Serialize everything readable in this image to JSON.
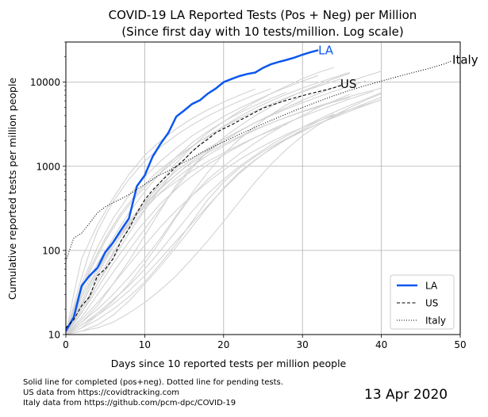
{
  "chart_data": {
    "type": "line",
    "title_line1": "COVID-19 LA Reported Tests (Pos + Neg) per Million",
    "title_line2": "(Since first day with 10 tests/million. Log scale)",
    "xlabel": "Days since 10 reported tests per million people",
    "ylabel": "Cumulative reported tests per million people",
    "xlim": [
      0,
      50
    ],
    "ylim": [
      10,
      30000
    ],
    "yscale": "log",
    "xticks": [
      0,
      10,
      20,
      30,
      40,
      50
    ],
    "xtick_labels": [
      "0",
      "10",
      "20",
      "30",
      "40",
      "50"
    ],
    "yticks": [
      10,
      100,
      1000,
      10000
    ],
    "ytick_labels": [
      "10",
      "100",
      "1000",
      "10000"
    ],
    "grid": true,
    "legend_placement": "lower-right",
    "legend": [
      {
        "label": "LA",
        "style": "solid",
        "color": "#0b57f0"
      },
      {
        "label": "US",
        "style": "dashed",
        "color": "#000000"
      },
      {
        "label": "Italy",
        "style": "dotted",
        "color": "#000000"
      }
    ],
    "annotations": [
      {
        "text": "LA",
        "x": 32,
        "y": 24000,
        "color": "#0b57f0"
      },
      {
        "text": "US",
        "x": 34.8,
        "y": 9500,
        "color": "#000000"
      },
      {
        "text": "Italy",
        "x": 49,
        "y": 18500,
        "color": "#000000"
      }
    ],
    "series": [
      {
        "name": "LA",
        "color": "#0b57f0",
        "style": "solid",
        "x": [
          0,
          1,
          2,
          3,
          4,
          5,
          6,
          7,
          8,
          9,
          10,
          11,
          12,
          13,
          14,
          15,
          16,
          17,
          18,
          19,
          20,
          21,
          22,
          23,
          24,
          25,
          26,
          27,
          28,
          29,
          30,
          31,
          32
        ],
        "y": [
          11,
          16,
          38,
          50,
          62,
          95,
          125,
          175,
          240,
          580,
          780,
          1300,
          1850,
          2500,
          3900,
          4600,
          5500,
          6100,
          7300,
          8400,
          10000,
          10900,
          11800,
          12500,
          13000,
          14800,
          16300,
          17400,
          18400,
          19600,
          21200,
          22700,
          24000
        ]
      },
      {
        "name": "US",
        "color": "#000000",
        "style": "dashed",
        "x": [
          0,
          1,
          2,
          3,
          4,
          5,
          6,
          7,
          8,
          9,
          10,
          11,
          12,
          13,
          14,
          15,
          16,
          17,
          18,
          19,
          20,
          21,
          22,
          23,
          24,
          25,
          26,
          27,
          28,
          29,
          30,
          31,
          32,
          33,
          34,
          35
        ],
        "y": [
          12,
          15,
          22,
          28,
          50,
          60,
          80,
          130,
          180,
          280,
          400,
          520,
          650,
          800,
          1000,
          1200,
          1500,
          1800,
          2100,
          2500,
          2800,
          3100,
          3500,
          3900,
          4400,
          4900,
          5300,
          5700,
          6100,
          6500,
          6900,
          7300,
          7700,
          8100,
          8600,
          9200
        ]
      },
      {
        "name": "Italy",
        "color": "#000000",
        "style": "dotted",
        "x": [
          0,
          1,
          2,
          3,
          4,
          5,
          6,
          7,
          8,
          9,
          10,
          11,
          12,
          13,
          14,
          15,
          16,
          17,
          18,
          19,
          20,
          22,
          24,
          26,
          28,
          30,
          32,
          34,
          36,
          38,
          40,
          42,
          44,
          46,
          48,
          49
        ],
        "y": [
          75,
          140,
          160,
          210,
          280,
          330,
          370,
          410,
          460,
          530,
          610,
          700,
          800,
          880,
          1000,
          1120,
          1250,
          1420,
          1580,
          1760,
          1950,
          2400,
          2900,
          3500,
          4200,
          5000,
          5900,
          6900,
          8000,
          9100,
          10300,
          11600,
          13000,
          14500,
          16500,
          18000
        ]
      }
    ],
    "background_series": [
      {
        "x": [
          0,
          2,
          4,
          6,
          8,
          10,
          12,
          14,
          16,
          18,
          20,
          22,
          24,
          26,
          28,
          30
        ],
        "y": [
          10,
          14,
          22,
          40,
          75,
          150,
          300,
          600,
          1000,
          1500,
          2000,
          2600,
          3300,
          4100,
          5000,
          6000
        ]
      },
      {
        "x": [
          0,
          2,
          4,
          6,
          8,
          10,
          12,
          14,
          16,
          18,
          20,
          22,
          24,
          26,
          28,
          30,
          32,
          34,
          36
        ],
        "y": [
          10,
          12,
          17,
          25,
          40,
          70,
          130,
          250,
          450,
          700,
          1000,
          1400,
          1900,
          2500,
          3200,
          4000,
          5000,
          6000,
          7200
        ]
      },
      {
        "x": [
          0,
          2,
          4,
          6,
          8,
          10,
          12,
          14,
          16,
          18,
          20,
          22,
          24,
          26,
          28
        ],
        "y": [
          10,
          30,
          70,
          140,
          280,
          500,
          850,
          1300,
          1900,
          2600,
          3400,
          4300,
          5300,
          6400,
          7600
        ]
      },
      {
        "x": [
          0,
          1,
          3,
          5,
          7,
          9,
          11,
          13,
          15,
          17,
          19,
          21,
          23,
          25,
          27,
          29,
          31,
          33,
          35
        ],
        "y": [
          11,
          20,
          55,
          130,
          260,
          450,
          700,
          1000,
          1450,
          2000,
          2600,
          3300,
          4100,
          5000,
          6000,
          7100,
          8300,
          9600,
          11000
        ]
      },
      {
        "x": [
          0,
          2,
          4,
          6,
          8,
          10,
          12,
          14,
          16,
          18,
          20,
          22,
          24,
          26,
          28,
          30,
          32,
          34,
          36,
          38,
          40
        ],
        "y": [
          10,
          13,
          18,
          26,
          38,
          60,
          100,
          170,
          290,
          470,
          700,
          1000,
          1350,
          1800,
          2300,
          2900,
          3600,
          4400,
          5300,
          6300,
          7500
        ]
      },
      {
        "x": [
          0,
          2,
          4,
          6,
          8,
          10,
          12,
          14,
          16,
          18,
          20,
          22,
          24,
          26,
          28,
          30,
          32,
          34
        ],
        "y": [
          10,
          18,
          40,
          90,
          190,
          360,
          650,
          1100,
          1700,
          2500,
          3400,
          4500,
          5800,
          7300,
          9000,
          11000,
          13000,
          15000
        ]
      },
      {
        "x": [
          0,
          1,
          2,
          4,
          6,
          8,
          10,
          12,
          14,
          16,
          18,
          20,
          22,
          24,
          26,
          28,
          30,
          32,
          34,
          36,
          38,
          40
        ],
        "y": [
          10,
          16,
          28,
          60,
          110,
          200,
          340,
          540,
          800,
          1150,
          1550,
          2000,
          2600,
          3300,
          4100,
          5000,
          6100,
          7300,
          8700,
          10200,
          11800,
          13500
        ]
      },
      {
        "x": [
          0,
          2,
          4,
          6,
          8,
          10,
          12,
          14,
          16,
          18,
          20,
          22,
          24,
          26,
          28,
          30,
          32
        ],
        "y": [
          10,
          40,
          110,
          240,
          450,
          750,
          1150,
          1650,
          2300,
          3000,
          3900,
          4900,
          6000,
          7300,
          8700,
          10300,
          12000
        ]
      },
      {
        "x": [
          0,
          2,
          4,
          6,
          8,
          10,
          12,
          14,
          16,
          18,
          20,
          22,
          24,
          26,
          28,
          30,
          32,
          34,
          36,
          38,
          40
        ],
        "y": [
          10,
          11,
          13,
          17,
          25,
          40,
          65,
          110,
          190,
          330,
          550,
          850,
          1200,
          1600,
          2100,
          2600,
          3200,
          3900,
          4700,
          5600,
          6600
        ]
      },
      {
        "x": [
          0,
          3,
          6,
          9,
          12,
          15,
          18,
          21,
          24,
          27,
          30,
          33,
          36,
          39
        ],
        "y": [
          10,
          25,
          70,
          170,
          360,
          650,
          1050,
          1550,
          2200,
          3000,
          3900,
          5000,
          6300,
          7800
        ]
      },
      {
        "x": [
          0,
          2,
          4,
          6,
          8,
          10,
          12,
          14,
          16,
          18,
          20,
          22,
          24,
          26,
          28,
          30,
          32,
          34,
          36,
          38
        ],
        "y": [
          10,
          22,
          55,
          120,
          220,
          380,
          600,
          880,
          1220,
          1630,
          2100,
          2650,
          3300,
          4000,
          4800,
          5700,
          6700,
          7800,
          9000,
          10300
        ]
      },
      {
        "x": [
          0,
          1,
          2,
          4,
          6,
          8,
          10,
          12,
          14,
          16,
          18,
          20,
          22,
          24
        ],
        "y": [
          10,
          30,
          80,
          200,
          420,
          800,
          1350,
          2000,
          2800,
          3700,
          4700,
          5800,
          7000,
          8300
        ]
      },
      {
        "x": [
          0,
          2,
          4,
          6,
          8,
          10,
          12,
          14,
          16,
          18,
          20,
          22,
          24,
          26,
          28,
          30,
          32,
          34,
          36,
          38,
          40
        ],
        "y": [
          10,
          12,
          15,
          20,
          28,
          42,
          70,
          120,
          220,
          400,
          650,
          950,
          1300,
          1700,
          2150,
          2650,
          3200,
          3800,
          4500,
          5300,
          6200
        ]
      },
      {
        "x": [
          0,
          2,
          4,
          6,
          8,
          10,
          12,
          14,
          16,
          18,
          20,
          22,
          24,
          26,
          28,
          30,
          32,
          34,
          36
        ],
        "y": [
          10,
          16,
          30,
          55,
          100,
          180,
          320,
          560,
          950,
          1500,
          2200,
          3000,
          4000,
          5100,
          6400,
          7800,
          9300,
          11000,
          12800
        ]
      },
      {
        "x": [
          0,
          2,
          4,
          6,
          8,
          10,
          12,
          14,
          16,
          18,
          20,
          22,
          24,
          26,
          28,
          30
        ],
        "y": [
          10,
          14,
          20,
          30,
          48,
          80,
          140,
          260,
          480,
          850,
          1400,
          2100,
          3000,
          4100,
          5400,
          7000
        ]
      },
      {
        "x": [
          0,
          1,
          2,
          3,
          5,
          7,
          9,
          11,
          13,
          15,
          17,
          19,
          21,
          23,
          25,
          27,
          29,
          31,
          33
        ],
        "y": [
          10,
          18,
          35,
          60,
          140,
          280,
          480,
          760,
          1100,
          1500,
          2000,
          2600,
          3300,
          4100,
          5000,
          6000,
          7100,
          8300,
          9600
        ]
      },
      {
        "x": [
          0,
          2,
          4,
          6,
          8,
          10,
          12,
          14,
          16,
          18,
          20,
          22,
          24,
          26,
          28,
          30,
          32,
          34,
          36,
          38,
          40
        ],
        "y": [
          10,
          11,
          12,
          14,
          18,
          24,
          34,
          50,
          80,
          130,
          220,
          380,
          650,
          1050,
          1600,
          2300,
          3100,
          4000,
          5000,
          6100,
          7300
        ]
      },
      {
        "x": [
          0,
          2,
          4,
          6,
          8,
          10,
          12,
          14,
          16,
          18,
          20,
          22,
          24,
          26,
          28
        ],
        "y": [
          10,
          25,
          60,
          120,
          210,
          330,
          480,
          660,
          880,
          1140,
          1440,
          1800,
          2200,
          2650,
          3150
        ]
      },
      {
        "x": [
          0,
          2,
          4,
          6,
          8,
          10,
          12,
          14,
          16,
          18,
          20,
          22,
          24,
          26,
          28,
          30,
          32,
          34,
          36,
          38,
          40
        ],
        "y": [
          10,
          20,
          45,
          95,
          180,
          310,
          490,
          720,
          1000,
          1350,
          1750,
          2200,
          2700,
          3250,
          3850,
          4500,
          5200,
          5950,
          6750,
          7600,
          8500
        ]
      },
      {
        "x": [
          0,
          1,
          2,
          4,
          6,
          8,
          10,
          12,
          14,
          16,
          18,
          20,
          22,
          24,
          26,
          28,
          30,
          32,
          34,
          36
        ],
        "y": [
          10,
          14,
          20,
          40,
          80,
          160,
          300,
          550,
          950,
          1500,
          2200,
          3000,
          3900,
          4900,
          6000,
          7200,
          8500,
          9900,
          11400,
          13000
        ]
      },
      {
        "x": [
          0,
          2,
          4,
          6,
          8,
          10,
          12,
          14,
          16,
          18,
          20,
          22,
          24,
          26,
          28,
          30,
          32,
          34
        ],
        "y": [
          10,
          13,
          17,
          23,
          33,
          50,
          80,
          130,
          210,
          340,
          540,
          820,
          1180,
          1620,
          2140,
          2740,
          3420,
          4200
        ]
      },
      {
        "x": [
          0,
          3,
          6,
          9,
          12,
          15,
          18,
          21,
          24,
          27,
          30,
          33,
          36
        ],
        "y": [
          10,
          35,
          110,
          280,
          560,
          950,
          1450,
          2050,
          2750,
          3550,
          4450,
          5450,
          6550
        ]
      },
      {
        "x": [
          0,
          2,
          4,
          6,
          8,
          10,
          12,
          14,
          16,
          18,
          20,
          22,
          24,
          26,
          28,
          30,
          32,
          34,
          36,
          38,
          40
        ],
        "y": [
          10,
          15,
          24,
          40,
          68,
          115,
          190,
          300,
          450,
          650,
          900,
          1200,
          1550,
          1950,
          2400,
          2900,
          3450,
          4050,
          4700,
          5400,
          6150
        ]
      },
      {
        "x": [
          0,
          1,
          2,
          3,
          4,
          6,
          8,
          10,
          12,
          14,
          16,
          18,
          20,
          22,
          24,
          26
        ],
        "y": [
          10,
          22,
          48,
          95,
          170,
          380,
          700,
          1150,
          1700,
          2350,
          3100,
          3950,
          4900,
          5950,
          7100,
          8350
        ]
      }
    ]
  },
  "footnotes": [
    "Solid line for completed (pos+neg). Dotted line for pending tests.",
    "US data from https://covidtracking.com",
    "Italy data from https://github.com/pcm-dpc/COVID-19"
  ],
  "date_label": "13 Apr 2020"
}
